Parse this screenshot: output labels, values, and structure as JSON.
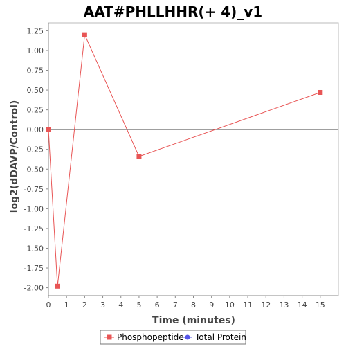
{
  "chart_data": {
    "type": "line",
    "title": "AAT#PHLLHHR(+ 4)_v1",
    "xlabel": "Time (minutes)",
    "ylabel": "log2(dDAVP/Control)",
    "xlim": [
      0,
      16
    ],
    "ylim": [
      -2.1,
      1.35
    ],
    "xticks": [
      0,
      1,
      2,
      3,
      4,
      5,
      6,
      7,
      8,
      9,
      10,
      11,
      12,
      13,
      14,
      15
    ],
    "yticks": [
      -2.0,
      -1.75,
      -1.5,
      -1.25,
      -1.0,
      -0.75,
      -0.5,
      -0.25,
      0.0,
      0.25,
      0.5,
      0.75,
      1.0,
      1.25
    ],
    "ytick_labels": [
      "-2.00",
      "-1.75",
      "-1.50",
      "-1.25",
      "-1.00",
      "-0.75",
      "-0.50",
      "-0.25",
      "0.00",
      "0.25",
      "0.50",
      "0.75",
      "1.00",
      "1.25"
    ],
    "grid": false,
    "reference_line_y": 0,
    "legend_position": "bottom",
    "series": [
      {
        "name": "Phosphopeptide",
        "color": "#e85555",
        "marker": "square",
        "x": [
          0,
          0.5,
          2,
          5,
          15
        ],
        "y": [
          0.0,
          -1.98,
          1.2,
          -0.34,
          0.47
        ]
      },
      {
        "name": "Total Protein",
        "color": "#5555e8",
        "marker": "circle",
        "x": [],
        "y": []
      }
    ]
  }
}
